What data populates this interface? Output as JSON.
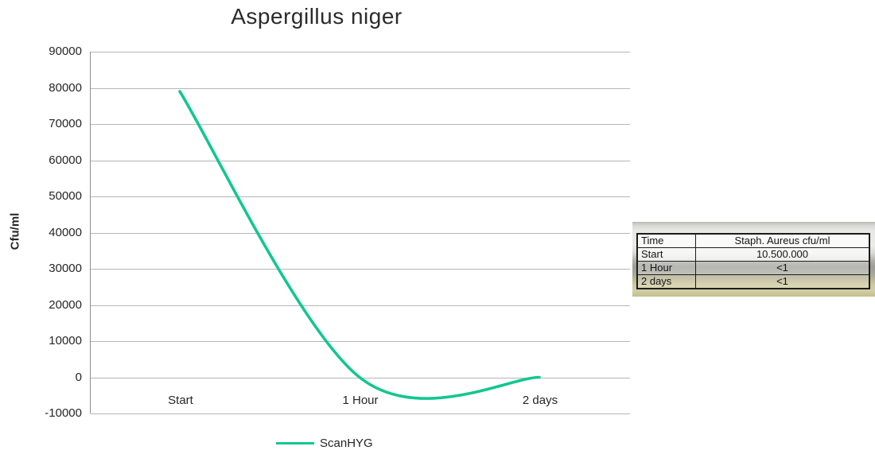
{
  "chart_data": {
    "type": "line",
    "title": "Aspergillus niger",
    "xlabel": "",
    "ylabel": "Cfu/ml",
    "categories": [
      "Start",
      "1 Hour",
      "2 days"
    ],
    "series": [
      {
        "name": "ScanHYG",
        "color": "#12C791",
        "values": [
          79000,
          0,
          0
        ]
      }
    ],
    "ylim": [
      -10000,
      90000
    ],
    "ytick_step": 10000,
    "grid": true,
    "legend_position": "bottom",
    "line_style": "smooth"
  },
  "side_table": {
    "headers": [
      "Time",
      "Staph. Aureus cfu/ml"
    ],
    "rows": [
      [
        "Start",
        "10.500.000"
      ],
      [
        "1 Hour",
        "<1"
      ],
      [
        "2 days",
        "<1"
      ]
    ]
  }
}
